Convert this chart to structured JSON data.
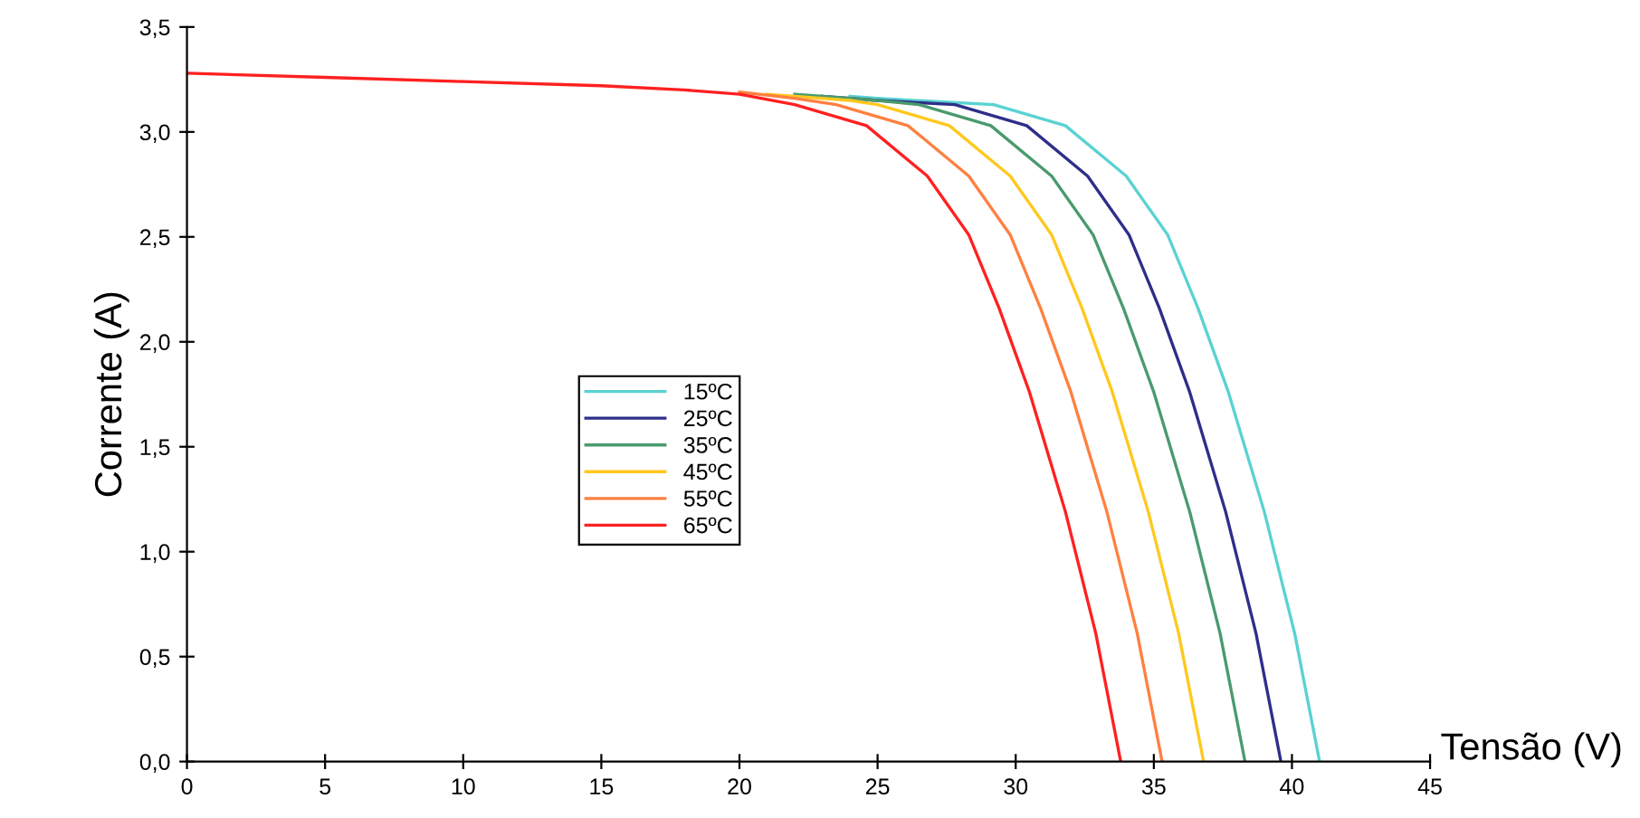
{
  "chart_data": {
    "type": "line",
    "xlabel": "Tensão (V)",
    "ylabel": "Corrente (A)",
    "xlim": [
      0,
      45
    ],
    "ylim": [
      0,
      3.5
    ],
    "xticks": [
      0,
      5,
      10,
      15,
      20,
      25,
      30,
      35,
      40,
      45
    ],
    "yticks": [
      {
        "value": 0,
        "label": "0,0"
      },
      {
        "value": 0.5,
        "label": "0,5"
      },
      {
        "value": 1,
        "label": "1,0"
      },
      {
        "value": 1.5,
        "label": "1,5"
      },
      {
        "value": 2,
        "label": "2,0"
      },
      {
        "value": 2.5,
        "label": "2,5"
      },
      {
        "value": 3,
        "label": "3,0"
      },
      {
        "value": 3.5,
        "label": "3,5"
      }
    ],
    "grid": false,
    "legend": "center",
    "marker": "none",
    "line_style": "solid",
    "series": [
      {
        "name": "15ºC",
        "color": "#5ad2d2",
        "x": [
          24,
          25,
          29.2,
          31.8,
          34.0,
          35.5,
          36.6,
          37.7,
          39.0,
          40.1,
          41.0
        ],
        "values": [
          3.17,
          3.16,
          3.13,
          3.03,
          2.79,
          2.51,
          2.16,
          1.76,
          1.19,
          0.61,
          0
        ]
      },
      {
        "name": "25ºC",
        "color": "#2e2e8a",
        "x": [
          23,
          25,
          27.8,
          30.4,
          32.6,
          34.1,
          35.2,
          36.3,
          37.6,
          38.7,
          39.6
        ],
        "values": [
          3.17,
          3.15,
          3.13,
          3.03,
          2.79,
          2.51,
          2.16,
          1.76,
          1.19,
          0.61,
          0
        ]
      },
      {
        "name": "35ºC",
        "color": "#4a9a6e",
        "x": [
          22,
          25,
          26.5,
          29.1,
          31.3,
          32.8,
          33.9,
          35.0,
          36.3,
          37.4,
          38.3
        ],
        "values": [
          3.18,
          3.15,
          3.13,
          3.03,
          2.79,
          2.51,
          2.16,
          1.76,
          1.19,
          0.61,
          0
        ]
      },
      {
        "name": "45ºC",
        "color": "#ffc81e",
        "x": [
          21,
          24,
          25,
          27.6,
          29.8,
          31.3,
          32.4,
          33.5,
          34.8,
          35.9,
          36.8
        ],
        "values": [
          3.18,
          3.15,
          3.13,
          3.03,
          2.79,
          2.51,
          2.16,
          1.76,
          1.19,
          0.61,
          0
        ]
      },
      {
        "name": "55ºC",
        "color": "#ff8040",
        "x": [
          20,
          22,
          23.5,
          26.1,
          28.3,
          29.8,
          30.9,
          32.0,
          33.3,
          34.4,
          35.3
        ],
        "values": [
          3.19,
          3.16,
          3.13,
          3.03,
          2.79,
          2.51,
          2.16,
          1.76,
          1.19,
          0.61,
          0
        ]
      },
      {
        "name": "65ºC",
        "color": "#ff2020",
        "x": [
          0,
          5,
          10,
          15,
          18,
          20,
          22,
          24.6,
          26.8,
          28.3,
          29.4,
          30.5,
          31.8,
          32.9,
          33.8
        ],
        "values": [
          3.28,
          3.26,
          3.24,
          3.22,
          3.2,
          3.18,
          3.13,
          3.03,
          2.79,
          2.51,
          2.16,
          1.76,
          1.19,
          0.61,
          0
        ]
      }
    ]
  }
}
